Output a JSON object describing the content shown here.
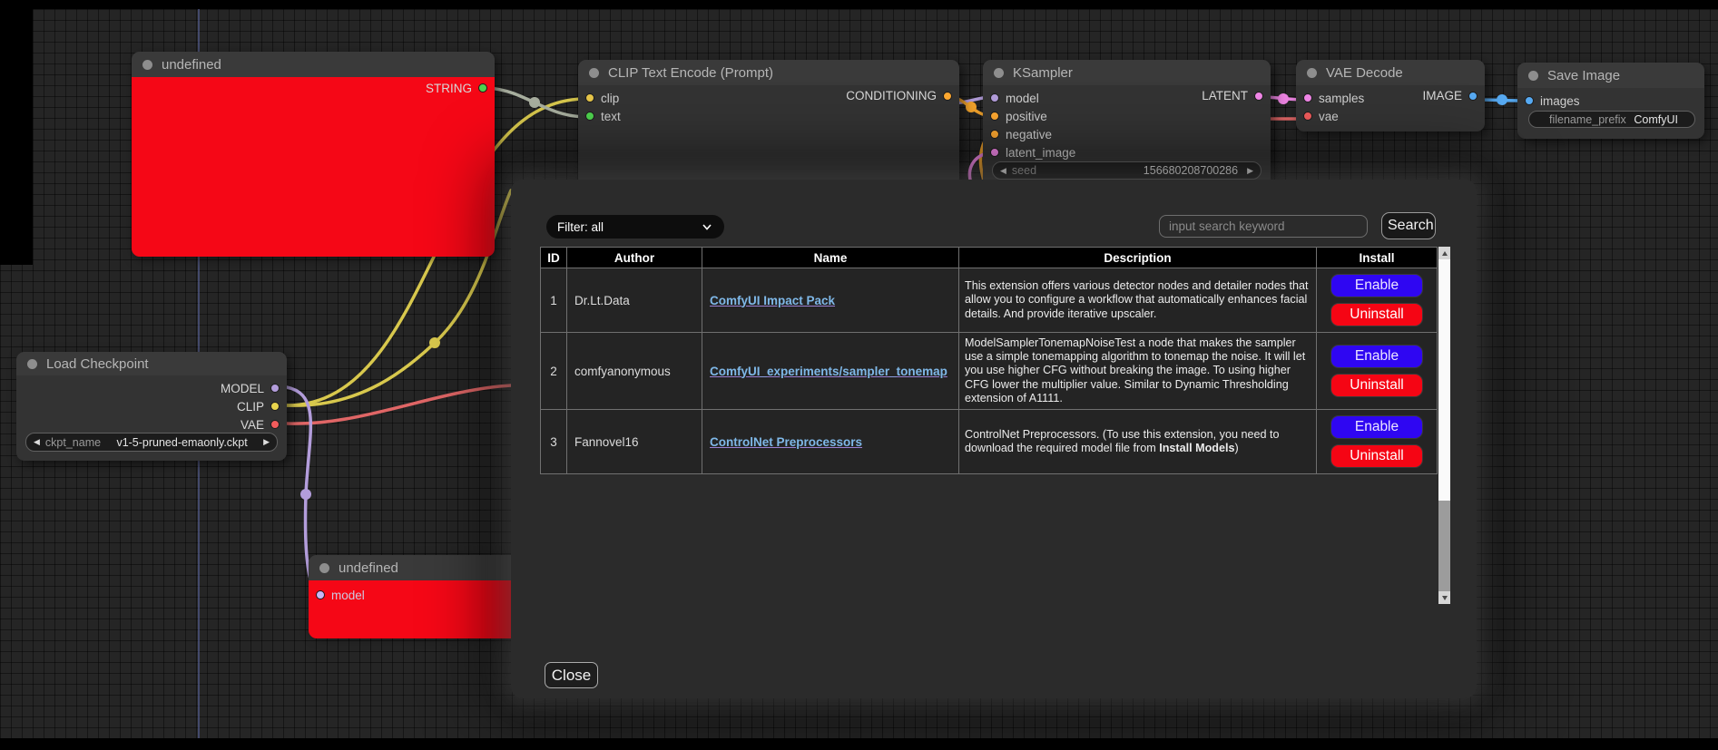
{
  "colors": {
    "node-red": "#f50716",
    "enable-btn": "#2f06f2",
    "uninstall-btn": "#f50514",
    "link-text": "#7fb8e8",
    "wire-yellow": "#d8c84d",
    "wire-gray": "#a8af9f",
    "wire-purple": "#b39ddb",
    "wire-red": "#e06666",
    "wire-orange": "#f5a52d",
    "wire-pink": "#ee85e3",
    "wire-blue": "#57aaf2",
    "port-string": "#4fd44f",
    "port-clip": "#e8c74a",
    "port-text": "#4fd44f",
    "port-model": "#b39ddb",
    "port-conditioning": "#ffa931",
    "port-latent_image": "#f287e8",
    "port-latent": "#f287e8",
    "port-samples": "#f287e8",
    "port-vae": "#f25c5c",
    "port-image": "#57aaf2",
    "port-images": "#57aaf2",
    "port-model-out": "#b39ddb",
    "port-clip-out": "#e8d44d",
    "port-vae-out": "#f25c5c",
    "port-model-lav": "#c9b6f7"
  },
  "icons": {
    "left-arrow": "◀",
    "right-arrow": "▶"
  },
  "canvas": {
    "nodes": {
      "undefined_top": {
        "title": "undefined",
        "outputs": [
          "STRING"
        ]
      },
      "clip_encode": {
        "title": "CLIP Text Encode (Prompt)",
        "inputs": [
          "clip",
          "text"
        ],
        "outputs": [
          "CONDITIONING"
        ]
      },
      "ksampler": {
        "title": "KSampler",
        "inputs": [
          "model",
          "positive",
          "negative",
          "latent_image"
        ],
        "outputs": [
          "LATENT"
        ],
        "widget": {
          "name": "seed",
          "value": "156680208700286"
        }
      },
      "vae_decode": {
        "title": "VAE Decode",
        "inputs": [
          "samples",
          "vae"
        ],
        "outputs": [
          "IMAGE"
        ]
      },
      "save_image": {
        "title": "Save Image",
        "inputs": [
          "images"
        ],
        "widget": {
          "name": "filename_prefix",
          "value": "ComfyUI"
        }
      },
      "load_checkpoint": {
        "title": "Load Checkpoint",
        "outputs": [
          "MODEL",
          "CLIP",
          "VAE"
        ],
        "widget": {
          "name": "ckpt_name",
          "value": "v1-5-pruned-emaonly.ckpt"
        }
      },
      "undefined_bottom": {
        "title": "undefined",
        "inputs": [
          "model"
        ]
      }
    }
  },
  "dialog": {
    "filter_label": "Filter: all",
    "search_placeholder": "input search keyword",
    "search_button": "Search",
    "close_button": "Close",
    "table": {
      "headers": [
        "ID",
        "Author",
        "Name",
        "Description",
        "Install"
      ],
      "rows": [
        {
          "id": "1",
          "author": "Dr.Lt.Data",
          "name": "ComfyUI Impact Pack",
          "description": [
            {
              "text": "This extension offers various detector nodes and detailer nodes that allow you to configure a workflow that automatically enhances facial details. And provide iterative upscaler.",
              "bold": false
            }
          ],
          "buttons": [
            {
              "label": "Enable",
              "type": "enable"
            },
            {
              "label": "Uninstall",
              "type": "uninstall"
            }
          ]
        },
        {
          "id": "2",
          "author": "comfyanonymous",
          "name": "ComfyUI_experiments/sampler_tonemap",
          "description": [
            {
              "text": "ModelSamplerTonemapNoiseTest a node that makes the sampler use a simple tonemapping algorithm to tonemap the noise. It will let you use higher CFG without breaking the image. To using higher CFG lower the multiplier value. Similar to Dynamic Thresholding extension of A1111.",
              "bold": false
            }
          ],
          "buttons": [
            {
              "label": "Enable",
              "type": "enable"
            },
            {
              "label": "Uninstall",
              "type": "uninstall"
            }
          ]
        },
        {
          "id": "3",
          "author": "Fannovel16",
          "name": "ControlNet Preprocessors",
          "description": [
            {
              "text": "ControlNet Preprocessors. (To use this extension, you need to download the required model file from ",
              "bold": false
            },
            {
              "text": "Install Models",
              "bold": true
            },
            {
              "text": ")",
              "bold": false
            }
          ],
          "buttons": [
            {
              "label": "Enable",
              "type": "enable"
            },
            {
              "label": "Uninstall",
              "type": "uninstall"
            }
          ]
        }
      ]
    }
  }
}
